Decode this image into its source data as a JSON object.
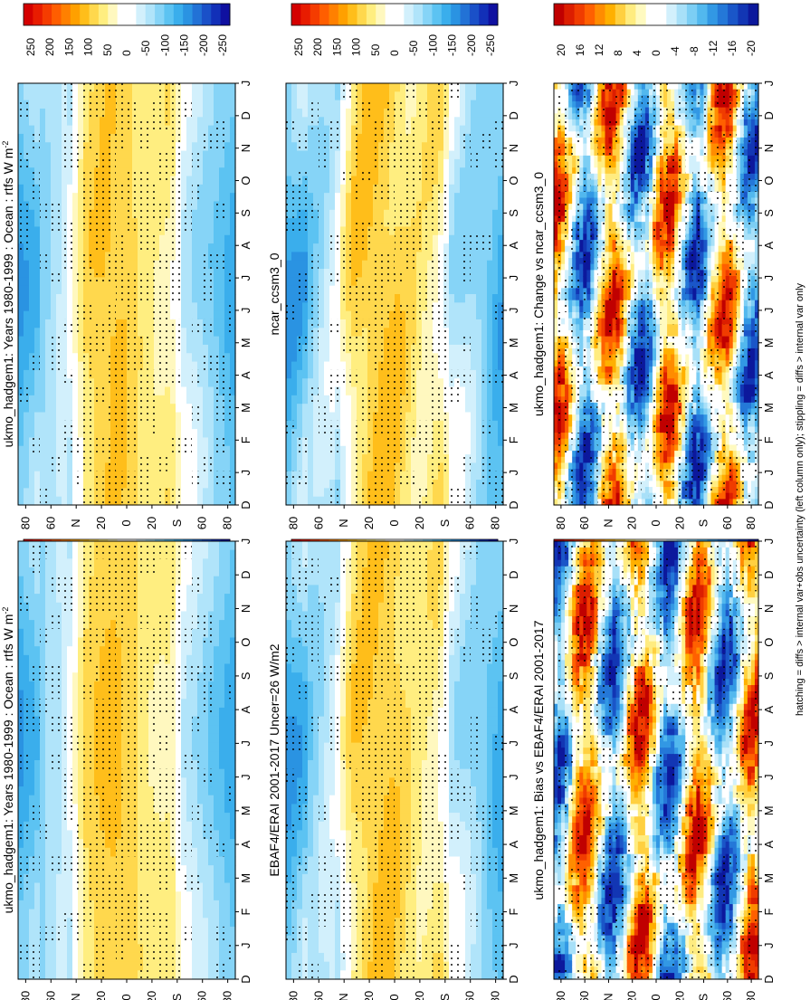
{
  "footnote": "hatching = diffs > internal var+obs uncertainty (left column only); stippling = diffs > internal var only",
  "colors": {
    "abs_scale": [
      "#d40000",
      "#e81c00",
      "#f53c00",
      "#ff5e00",
      "#ff8000",
      "#ffa000",
      "#ffbe1a",
      "#ffd84d",
      "#ffee80",
      "#fff8bf",
      "#ffffff",
      "#ffffff",
      "#d2f0fc",
      "#b0e4fa",
      "#86d4f7",
      "#5cc3f2",
      "#3aaeec",
      "#2a93e2",
      "#2272d6",
      "#1a50c8",
      "#1230b8",
      "#0f10a0"
    ],
    "diff_scale": [
      "#c00000",
      "#dc1e00",
      "#f03c00",
      "#ff6000",
      "#ff8c00",
      "#ffb000",
      "#ffd040",
      "#ffec80",
      "#fffac0",
      "#ffffff",
      "#ffffff",
      "#d2f0fc",
      "#a8e0f8",
      "#7ccef4",
      "#52b8ee",
      "#3298e4",
      "#2478d8",
      "#1a56c8",
      "#1236b4",
      "#0c189c"
    ]
  },
  "chart_data": [
    {
      "id": "model-climatology-left",
      "type": "heatmap",
      "title": "ukmo_hadgem1: Years 1980-1999 : Ocean : rtfs W m",
      "title_superscript": "-2",
      "months": [
        "D",
        "J",
        "F",
        "M",
        "A",
        "M",
        "J",
        "J",
        "A",
        "S",
        "O",
        "N",
        "D",
        "J"
      ],
      "lat_ticks": [
        "80",
        "60",
        "N",
        "20",
        "0",
        "20",
        "S",
        "60",
        "80"
      ],
      "lat_values": [
        80,
        60,
        40,
        20,
        0,
        -20,
        -40,
        -60,
        -80
      ],
      "colorbar_labels": [
        "250",
        "200",
        "150",
        "100",
        "50",
        "0",
        "-50",
        "-100",
        "-150",
        "-200",
        "-250"
      ],
      "zlim": [
        -275,
        275
      ],
      "stippled": true
    },
    {
      "id": "model-climatology-right",
      "type": "heatmap",
      "title": "ukmo_hadgem1: Years 1980-1999 : Ocean : rtfs W m",
      "title_superscript": "-2",
      "months": [
        "D",
        "J",
        "F",
        "M",
        "A",
        "M",
        "J",
        "J",
        "A",
        "S",
        "O",
        "N",
        "D",
        "J"
      ],
      "lat_ticks": [
        "80",
        "60",
        "N",
        "20",
        "0",
        "20",
        "S",
        "60",
        "80"
      ],
      "lat_values": [
        80,
        60,
        40,
        20,
        0,
        -20,
        -40,
        -60,
        -80
      ],
      "colorbar_labels": [
        "250",
        "200",
        "150",
        "100",
        "50",
        "0",
        "-50",
        "-100",
        "-150",
        "-200",
        "-250"
      ],
      "zlim": [
        -275,
        275
      ],
      "stippled": true
    },
    {
      "id": "obs-climatology",
      "type": "heatmap",
      "title": "EBAF4/ERAI 2001-2017 Uncer=26 W/m2",
      "title_superscript": "",
      "months": [
        "D",
        "J",
        "F",
        "M",
        "A",
        "M",
        "J",
        "J",
        "A",
        "S",
        "O",
        "N",
        "D",
        "J"
      ],
      "lat_ticks": [
        "80",
        "60",
        "N",
        "20",
        "0",
        "20",
        "S",
        "60",
        "80"
      ],
      "lat_values": [
        80,
        60,
        40,
        20,
        0,
        -20,
        -40,
        -60,
        -80
      ],
      "colorbar_labels": [
        "250",
        "200",
        "150",
        "100",
        "50",
        "0",
        "-50",
        "-100",
        "-150",
        "-200",
        "-250"
      ],
      "zlim": [
        -275,
        275
      ],
      "stippled": true
    },
    {
      "id": "comparison-model-climatology",
      "type": "heatmap",
      "title": "ncar_ccsm3_0",
      "title_superscript": "",
      "months": [
        "D",
        "J",
        "F",
        "M",
        "A",
        "M",
        "J",
        "J",
        "A",
        "S",
        "O",
        "N",
        "D",
        "J"
      ],
      "lat_ticks": [
        "80",
        "60",
        "N",
        "20",
        "0",
        "20",
        "S",
        "60",
        "80"
      ],
      "lat_values": [
        80,
        60,
        40,
        20,
        0,
        -20,
        -40,
        -60,
        -80
      ],
      "colorbar_labels": [
        "250",
        "200",
        "150",
        "100",
        "50",
        "0",
        "-50",
        "-100",
        "-150",
        "-200",
        "-250"
      ],
      "zlim": [
        -275,
        275
      ],
      "stippled": true
    },
    {
      "id": "bias-vs-obs",
      "type": "heatmap",
      "title": "ukmo_hadgem1: Bias vs EBAF4/ERAI 2001-2017",
      "title_superscript": "",
      "months": [
        "D",
        "J",
        "F",
        "M",
        "A",
        "M",
        "J",
        "J",
        "A",
        "S",
        "O",
        "N",
        "D",
        "J"
      ],
      "lat_ticks": [
        "80",
        "60",
        "N",
        "20",
        "0",
        "20",
        "S",
        "60",
        "80"
      ],
      "lat_values": [
        80,
        60,
        40,
        20,
        0,
        -20,
        -40,
        -60,
        -80
      ],
      "colorbar_labels": [
        "20",
        "16",
        "12",
        "8",
        "4",
        "0",
        "-4",
        "-8",
        "-12",
        "-16",
        "-20"
      ],
      "zlim": [
        -22,
        22
      ],
      "stippled": true
    },
    {
      "id": "change-vs-comparison",
      "type": "heatmap",
      "title": "ukmo_hadgem1: Change vs ncar_ccsm3_0",
      "title_superscript": "",
      "months": [
        "D",
        "J",
        "F",
        "M",
        "A",
        "M",
        "J",
        "J",
        "A",
        "S",
        "O",
        "N",
        "D",
        "J"
      ],
      "lat_ticks": [
        "80",
        "60",
        "N",
        "20",
        "0",
        "20",
        "S",
        "60",
        "80"
      ],
      "lat_values": [
        80,
        60,
        40,
        20,
        0,
        -20,
        -40,
        -60,
        -80
      ],
      "colorbar_labels": [
        "20",
        "16",
        "12",
        "8",
        "4",
        "0",
        "-4",
        "-8",
        "-12",
        "-16",
        "-20"
      ],
      "zlim": [
        -22,
        22
      ],
      "stippled": true
    }
  ]
}
